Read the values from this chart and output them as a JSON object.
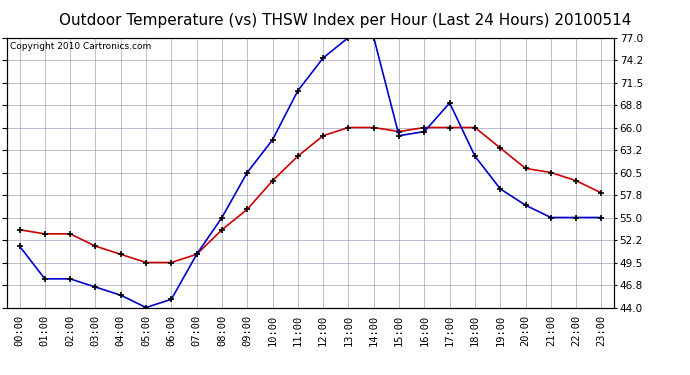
{
  "title": "Outdoor Temperature (vs) THSW Index per Hour (Last 24 Hours) 20100514",
  "copyright": "Copyright 2010 Cartronics.com",
  "hours": [
    "00:00",
    "01:00",
    "02:00",
    "03:00",
    "04:00",
    "05:00",
    "06:00",
    "07:00",
    "08:00",
    "09:00",
    "10:00",
    "11:00",
    "12:00",
    "13:00",
    "14:00",
    "15:00",
    "16:00",
    "17:00",
    "18:00",
    "19:00",
    "20:00",
    "21:00",
    "22:00",
    "23:00"
  ],
  "temp": [
    53.5,
    53.0,
    53.0,
    51.5,
    50.5,
    49.5,
    49.5,
    50.5,
    53.5,
    56.0,
    59.5,
    62.5,
    65.0,
    66.0,
    66.0,
    65.5,
    66.0,
    66.0,
    66.0,
    63.5,
    61.0,
    60.5,
    59.5,
    58.0
  ],
  "thsw": [
    51.5,
    47.5,
    47.5,
    46.5,
    45.5,
    44.0,
    45.0,
    50.5,
    55.0,
    60.5,
    64.5,
    70.5,
    74.5,
    77.0,
    77.0,
    65.0,
    65.5,
    69.0,
    62.5,
    58.5,
    56.5,
    55.0,
    55.0,
    55.0
  ],
  "temp_color": "#cc0000",
  "thsw_color": "#0000cc",
  "bg_color": "#ffffff",
  "grid_color": "#9999bb",
  "title_color": "#000000",
  "ylim": [
    44.0,
    77.0
  ],
  "yticks": [
    44.0,
    46.8,
    49.5,
    52.2,
    55.0,
    57.8,
    60.5,
    63.2,
    66.0,
    68.8,
    71.5,
    74.2,
    77.0
  ],
  "title_fontsize": 11,
  "copyright_fontsize": 6.5,
  "tick_fontsize": 7.5,
  "marker": "+",
  "markersize": 5,
  "markeredgewidth": 1.2,
  "linewidth": 1.2
}
